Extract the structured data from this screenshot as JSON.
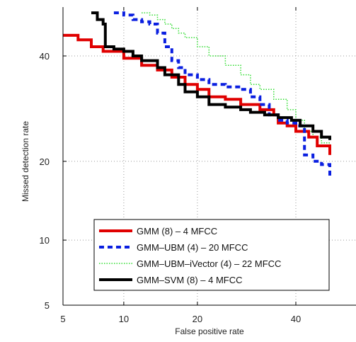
{
  "chart_data": {
    "type": "line",
    "xlabel": "False positive rate",
    "ylabel": "Missed detection rate",
    "x_scale": "probit",
    "y_scale": "probit",
    "xlim": [
      5,
      48
    ],
    "ylim": [
      4.8,
      50
    ],
    "x_ticks": [
      5,
      10,
      20,
      40
    ],
    "y_ticks": [
      5,
      10,
      20,
      40
    ],
    "grid": true,
    "legend_position": "bottom-left",
    "series": [
      {
        "name": "GMM (8) – 4 MFCC",
        "color": "#e00000",
        "style": "solid",
        "points": [
          [
            5,
            44.5
          ],
          [
            6,
            43.5
          ],
          [
            7,
            42
          ],
          [
            8,
            41
          ],
          [
            10,
            39.5
          ],
          [
            12,
            38
          ],
          [
            14,
            37
          ],
          [
            16,
            35.5
          ],
          [
            18,
            34
          ],
          [
            20,
            33
          ],
          [
            22,
            31.5
          ],
          [
            25,
            31
          ],
          [
            28,
            30
          ],
          [
            32,
            29
          ],
          [
            35,
            28
          ],
          [
            36,
            26.5
          ],
          [
            38,
            26
          ],
          [
            40,
            25
          ],
          [
            43,
            24
          ],
          [
            45,
            22.5
          ],
          [
            48,
            21
          ]
        ]
      },
      {
        "name": "GMM–UBM (4) – 20 MFCC",
        "color": "#0a1fe0",
        "style": "dashed",
        "points": [
          [
            9,
            49.5
          ],
          [
            10,
            49
          ],
          [
            11,
            48
          ],
          [
            12,
            47.5
          ],
          [
            13,
            47
          ],
          [
            14,
            45
          ],
          [
            15,
            42
          ],
          [
            16,
            39
          ],
          [
            17,
            37.5
          ],
          [
            18,
            36
          ],
          [
            20,
            35
          ],
          [
            22,
            34
          ],
          [
            25,
            33.5
          ],
          [
            28,
            33
          ],
          [
            30,
            31.5
          ],
          [
            32,
            30
          ],
          [
            34,
            28
          ],
          [
            36,
            27
          ],
          [
            38,
            26.5
          ],
          [
            40,
            26
          ],
          [
            42,
            21
          ],
          [
            44,
            20
          ],
          [
            46,
            19.5
          ],
          [
            48,
            17.5
          ]
        ]
      },
      {
        "name": "GMM–UBM–iVector (4) – 22 MFCC",
        "color": "#33dd33",
        "style": "dotted",
        "points": [
          [
            12,
            49.5
          ],
          [
            13,
            49
          ],
          [
            14,
            48
          ],
          [
            15,
            47
          ],
          [
            16,
            46
          ],
          [
            17,
            45
          ],
          [
            18,
            44
          ],
          [
            20,
            42
          ],
          [
            22,
            40
          ],
          [
            25,
            38
          ],
          [
            28,
            36
          ],
          [
            30,
            34
          ],
          [
            32,
            33
          ],
          [
            35,
            31
          ],
          [
            38,
            29
          ],
          [
            40,
            27
          ],
          [
            42,
            25
          ],
          [
            44,
            24
          ],
          [
            46,
            23
          ],
          [
            48,
            22.5
          ]
        ]
      },
      {
        "name": "GMM–SVM (8) – 4 MFCC",
        "color": "#000000",
        "style": "solid",
        "points": [
          [
            7,
            49.5
          ],
          [
            7.5,
            48
          ],
          [
            8,
            47
          ],
          [
            8.2,
            42
          ],
          [
            9,
            41.5
          ],
          [
            10,
            41
          ],
          [
            11,
            40
          ],
          [
            12,
            39
          ],
          [
            14,
            37.5
          ],
          [
            15,
            36
          ],
          [
            17,
            34
          ],
          [
            18,
            32.5
          ],
          [
            20,
            31.5
          ],
          [
            22,
            30
          ],
          [
            25,
            29.5
          ],
          [
            28,
            29
          ],
          [
            30,
            28.5
          ],
          [
            33,
            28
          ],
          [
            36,
            27.5
          ],
          [
            39,
            27
          ],
          [
            41,
            26
          ],
          [
            44,
            25
          ],
          [
            46,
            24
          ],
          [
            48,
            23.5
          ]
        ]
      }
    ]
  }
}
